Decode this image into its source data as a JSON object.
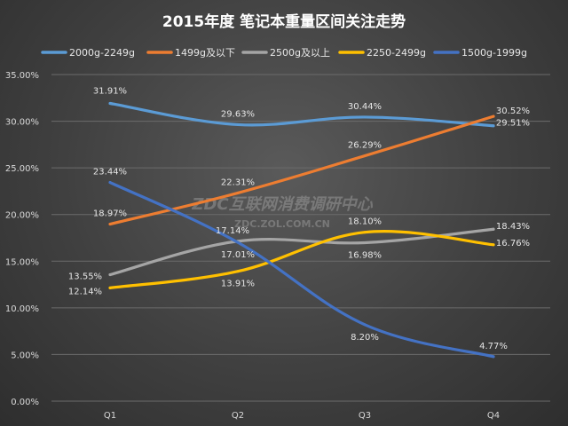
{
  "chart_data": {
    "type": "line",
    "title": "2015年度 笔记本重量区间关注走势",
    "categories": [
      "Q1",
      "Q2",
      "Q3",
      "Q4"
    ],
    "ylim": [
      0,
      35
    ],
    "yticks": [
      "0.00%",
      "5.00%",
      "10.00%",
      "15.00%",
      "20.00%",
      "25.00%",
      "30.00%",
      "35.00%"
    ],
    "ytick_values": [
      0,
      5,
      10,
      15,
      20,
      25,
      30,
      35
    ],
    "grid": true,
    "legend_position": "top",
    "series": [
      {
        "name": "2000g-2249g",
        "color": "#5b9bd5",
        "values": [
          31.91,
          29.63,
          30.44,
          29.51
        ],
        "labels": [
          "31.91%",
          "29.63%",
          "30.44%",
          "29.51%"
        ]
      },
      {
        "name": "1499g及以下",
        "color": "#ed7d31",
        "values": [
          18.97,
          22.31,
          26.29,
          30.52
        ],
        "labels": [
          "18.97%",
          "22.31%",
          "26.29%",
          "30.52%"
        ]
      },
      {
        "name": "2500g及以上",
        "color": "#a5a5a5",
        "values": [
          13.55,
          17.14,
          16.98,
          18.43
        ],
        "labels": [
          "13.55%",
          "17.14%",
          "16.98%",
          "18.43%"
        ]
      },
      {
        "name": "2250-2499g",
        "color": "#ffc000",
        "values": [
          12.14,
          13.91,
          18.1,
          16.76
        ],
        "labels": [
          "12.14%",
          "13.91%",
          "18.10%",
          "16.76%"
        ]
      },
      {
        "name": "1500g-1999g",
        "color": "#4472c4",
        "values": [
          23.44,
          17.01,
          8.2,
          4.77
        ],
        "labels": [
          "23.44%",
          "17.01%",
          "8.20%",
          "4.77%"
        ]
      }
    ]
  },
  "watermark": {
    "line1": "ZDC互联网消费调研中心",
    "line2": "ZDC.ZOL.COM.CN"
  }
}
